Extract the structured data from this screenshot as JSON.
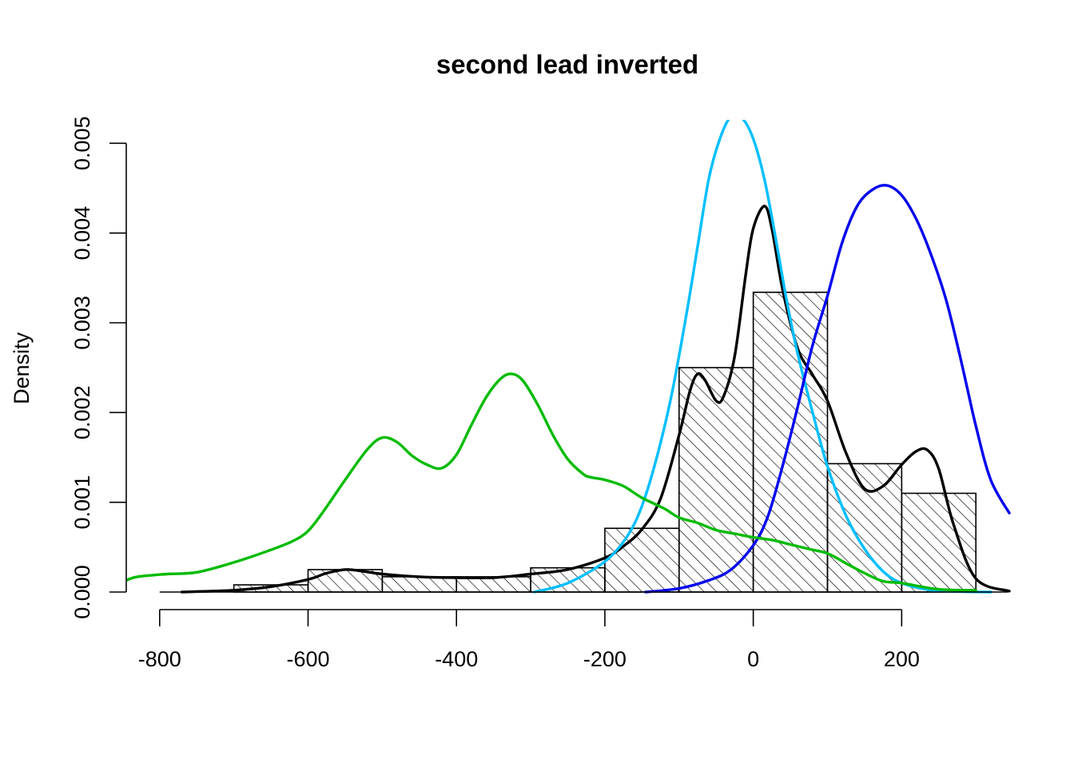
{
  "chart_data": {
    "type": "histogram",
    "title": "second lead inverted",
    "xlabel": "",
    "ylabel": "Density",
    "xlim": [
      -845,
      345
    ],
    "ylim": [
      0,
      0.00519
    ],
    "x_ticks": [
      -800,
      -600,
      -400,
      -200,
      0,
      200
    ],
    "x_tick_labels": [
      "-800",
      "-600",
      "-400",
      "-200",
      "0",
      "200"
    ],
    "y_ticks": [
      0.0,
      0.001,
      0.002,
      0.003,
      0.004,
      0.005
    ],
    "y_tick_labels": [
      "0.000",
      "0.001",
      "0.002",
      "0.003",
      "0.004",
      "0.005"
    ],
    "grid": false,
    "bars": {
      "fill": "diagonal-hatch",
      "bins": [
        {
          "from": -700,
          "to": -600,
          "density": 8e-05
        },
        {
          "from": -600,
          "to": -500,
          "density": 0.00025
        },
        {
          "from": -500,
          "to": -400,
          "density": 0.00017
        },
        {
          "from": -400,
          "to": -300,
          "density": 0.00017
        },
        {
          "from": -300,
          "to": -200,
          "density": 0.00027
        },
        {
          "from": -200,
          "to": -100,
          "density": 0.00071
        },
        {
          "from": -100,
          "to": 0,
          "density": 0.0025
        },
        {
          "from": 0,
          "to": 100,
          "density": 0.00334
        },
        {
          "from": 100,
          "to": 200,
          "density": 0.00143
        },
        {
          "from": 200,
          "to": 300,
          "density": 0.0011
        }
      ]
    },
    "series": [
      {
        "color": "#000000",
        "x": [
          -770,
          -700,
          -650,
          -600,
          -575,
          -550,
          -525,
          -500,
          -450,
          -400,
          -350,
          -300,
          -250,
          -200,
          -175,
          -150,
          -125,
          -100,
          -85,
          -75,
          -65,
          -50,
          -40,
          -25,
          -10,
          0,
          15,
          25,
          40,
          60,
          80,
          100,
          125,
          150,
          175,
          200,
          220,
          235,
          250,
          270,
          300,
          345
        ],
        "y": [
          0,
          2e-05,
          6e-05,
          0.00014,
          0.00021,
          0.00025,
          0.00023,
          0.0002,
          0.00017,
          0.00016,
          0.00016,
          0.0002,
          0.00025,
          0.00038,
          0.00051,
          0.0007,
          0.00104,
          0.00175,
          0.00225,
          0.00243,
          0.00236,
          0.00213,
          0.00218,
          0.00263,
          0.00355,
          0.00405,
          0.0043,
          0.00405,
          0.00335,
          0.00271,
          0.00242,
          0.00213,
          0.00155,
          0.00115,
          0.00118,
          0.00142,
          0.00157,
          0.00158,
          0.00137,
          0.00075,
          0.00015,
          1e-05
        ]
      },
      {
        "color": "#00BFFF",
        "x": [
          -295,
          -250,
          -200,
          -170,
          -150,
          -130,
          -110,
          -90,
          -75,
          -60,
          -45,
          -30,
          -15,
          0,
          15,
          30,
          45,
          60,
          80,
          100,
          125,
          150,
          175,
          200,
          240,
          280,
          320
        ],
        "y": [
          0,
          0.0001,
          0.00034,
          0.00062,
          0.00096,
          0.0015,
          0.0022,
          0.0031,
          0.00385,
          0.0046,
          0.00505,
          0.0053,
          0.00528,
          0.00505,
          0.0046,
          0.00395,
          0.00325,
          0.00265,
          0.002,
          0.0014,
          0.00085,
          0.00048,
          0.00023,
          0.0001,
          2e-05,
          5e-06,
          0
        ]
      },
      {
        "color": "#0000EE",
        "x": [
          -145,
          -100,
          -60,
          -30,
          0,
          20,
          40,
          60,
          80,
          100,
          120,
          140,
          160,
          180,
          200,
          220,
          240,
          260,
          280,
          300,
          320,
          345
        ],
        "y": [
          0,
          4e-05,
          0.00013,
          0.00025,
          0.00052,
          0.00085,
          0.00142,
          0.00207,
          0.00275,
          0.0033,
          0.0039,
          0.0043,
          0.00448,
          0.00453,
          0.00442,
          0.00415,
          0.00375,
          0.00325,
          0.00258,
          0.00185,
          0.00125,
          0.00088
        ]
      },
      {
        "color": "#00BB00",
        "x": [
          -845,
          -830,
          -790,
          -750,
          -700,
          -650,
          -620,
          -600,
          -580,
          -550,
          -520,
          -500,
          -480,
          -460,
          -440,
          -420,
          -400,
          -380,
          -360,
          -340,
          -325,
          -310,
          -290,
          -270,
          -250,
          -230,
          -220,
          -200,
          -175,
          -150,
          -120,
          -100,
          -75,
          -50,
          -25,
          0,
          25,
          50,
          75,
          100,
          125,
          150,
          175,
          200,
          250,
          300
        ],
        "y": [
          0.00013,
          0.00017,
          0.0002,
          0.00022,
          0.00033,
          0.00047,
          0.00057,
          0.00068,
          0.00089,
          0.00125,
          0.00159,
          0.00172,
          0.00167,
          0.00152,
          0.00142,
          0.00138,
          0.00153,
          0.00186,
          0.00217,
          0.00238,
          0.00243,
          0.00235,
          0.00208,
          0.00175,
          0.00148,
          0.00132,
          0.00128,
          0.00125,
          0.00118,
          0.00105,
          0.00093,
          0.00083,
          0.00077,
          0.00069,
          0.00065,
          0.00061,
          0.00058,
          0.00053,
          0.00048,
          0.00043,
          0.00032,
          0.00021,
          0.00012,
          0.0001,
          3e-05,
          2e-05
        ]
      }
    ]
  }
}
